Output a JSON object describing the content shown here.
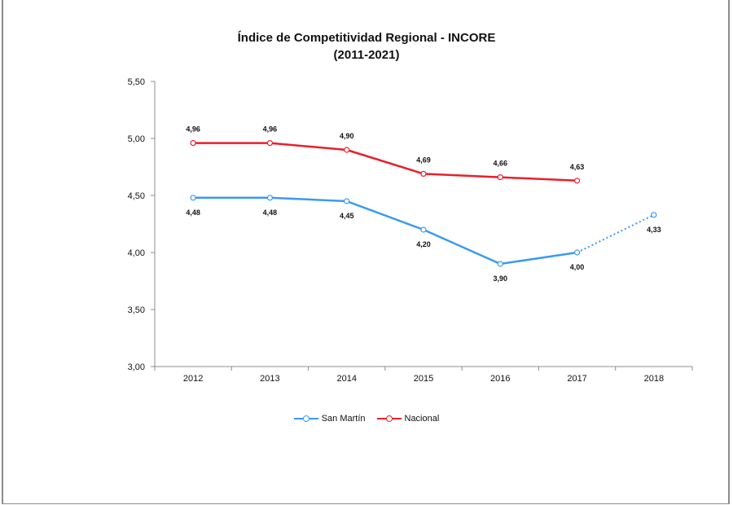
{
  "chart_data": {
    "type": "line",
    "title": "Índice de Competitividad Regional - INCORE",
    "subtitle": "(2011-2021)",
    "categories": [
      "2012",
      "2013",
      "2014",
      "2015",
      "2016",
      "2017",
      "2018"
    ],
    "ylim": [
      3.0,
      5.5
    ],
    "yticks": [
      "3,00",
      "3,50",
      "4,00",
      "4,50",
      "5,00",
      "5,50"
    ],
    "ytick_values": [
      3.0,
      3.5,
      4.0,
      4.5,
      5.0,
      5.5
    ],
    "grid": false,
    "legend_position": "bottom",
    "series": [
      {
        "name": "San Martín",
        "color": "#3a9af0",
        "values": [
          4.48,
          4.48,
          4.45,
          4.2,
          3.9,
          4.0,
          4.33
        ],
        "labels": [
          "4,48",
          "4,48",
          "4,45",
          "4,20",
          "3,90",
          "4,00",
          "4,33"
        ],
        "label_position": "below",
        "dashed_last_segment": true
      },
      {
        "name": "Nacional",
        "color": "#e8202a",
        "values": [
          4.96,
          4.96,
          4.9,
          4.69,
          4.66,
          4.63,
          null
        ],
        "labels": [
          "4,96",
          "4,96",
          "4,90",
          "4,69",
          "4,66",
          "4,63",
          null
        ],
        "label_position": "above",
        "dashed_last_segment": false
      }
    ]
  }
}
